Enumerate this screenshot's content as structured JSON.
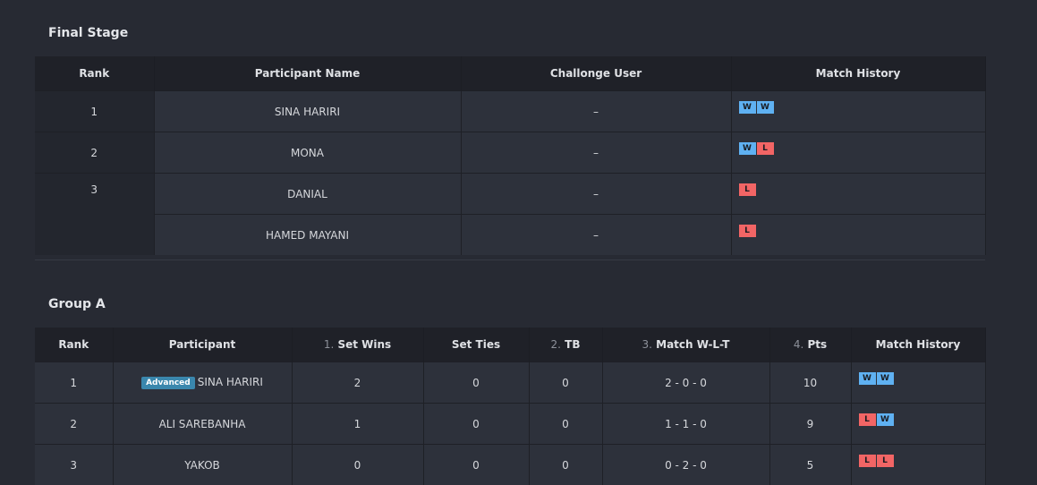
{
  "final_stage": {
    "title": "Final Stage",
    "headers": [
      "Rank",
      "Participant Name",
      "Challonge User",
      "Match History"
    ],
    "rows": [
      {
        "rank": "1",
        "name": "SINA HARIRI",
        "user": "–",
        "history": [
          "W",
          "W"
        ]
      },
      {
        "rank": "2",
        "name": "MONA",
        "user": "–",
        "history": [
          "W",
          "L"
        ]
      },
      {
        "rank": "3",
        "name": "DANIAL",
        "user": "–",
        "history": [
          "L"
        ]
      },
      {
        "rank": "",
        "name": "HAMED MAYANI",
        "user": "–",
        "history": [
          "L"
        ]
      }
    ]
  },
  "group_a": {
    "title": "Group A",
    "headers": [
      {
        "num": "",
        "label": "Rank"
      },
      {
        "num": "",
        "label": "Participant"
      },
      {
        "num": "1.",
        "label": "Set Wins"
      },
      {
        "num": "",
        "label": "Set Ties"
      },
      {
        "num": "2.",
        "label": "TB"
      },
      {
        "num": "3.",
        "label": "Match W-L-T"
      },
      {
        "num": "4.",
        "label": "Pts"
      },
      {
        "num": "",
        "label": "Match History"
      }
    ],
    "badge": "Advanced",
    "rows": [
      {
        "rank": "1",
        "name": "SINA HARIRI",
        "advanced": true,
        "set_wins": "2",
        "set_ties": "0",
        "tb": "0",
        "wlt": "2 - 0 - 0",
        "pts": "10",
        "history": [
          "W",
          "W"
        ]
      },
      {
        "rank": "2",
        "name": "ALI SAREBANHA",
        "advanced": false,
        "set_wins": "1",
        "set_ties": "0",
        "tb": "0",
        "wlt": "1 - 1 - 0",
        "pts": "9",
        "history": [
          "L",
          "W"
        ]
      },
      {
        "rank": "3",
        "name": "YAKOB",
        "advanced": false,
        "set_wins": "0",
        "set_ties": "0",
        "tb": "0",
        "wlt": "0 - 2 - 0",
        "pts": "5",
        "history": [
          "L",
          "L"
        ]
      }
    ]
  },
  "colors": {
    "win": "#5fb1f2",
    "loss": "#f26565",
    "badge": "#3a87ad",
    "background": "#272a33"
  }
}
